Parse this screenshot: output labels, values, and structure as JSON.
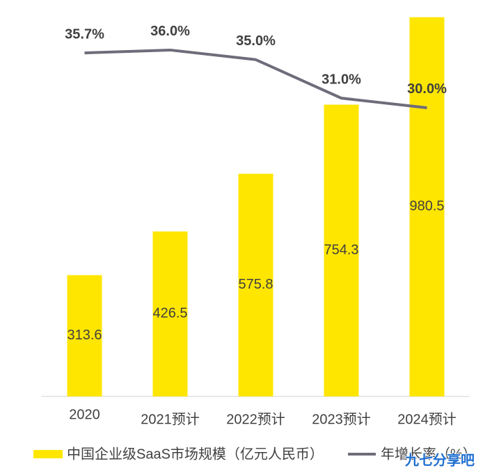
{
  "chart_data": {
    "type": "bar",
    "categories": [
      "2020",
      "2021预计",
      "2022预计",
      "2023预计",
      "2024预计"
    ],
    "series": [
      {
        "name": "中国企业级SaaS市场规模（亿元人民币）",
        "type": "bar",
        "color": "#ffe600",
        "values": [
          313.6,
          426.5,
          575.8,
          754.3,
          980.5
        ]
      },
      {
        "name": "年增长率（%）",
        "type": "line",
        "axis": "y2",
        "color": "#6f6c7a",
        "values": [
          35.7,
          36.0,
          35.0,
          31.0,
          30.0
        ],
        "value_labels": [
          "35.7%",
          "36.0%",
          "35.0%",
          "31.0%",
          "30.0%"
        ]
      }
    ],
    "ylim": [
      0,
      1025
    ],
    "y2lim": [
      0,
      41.2
    ],
    "legend": "bottom",
    "watermark": "九七分享吧"
  }
}
